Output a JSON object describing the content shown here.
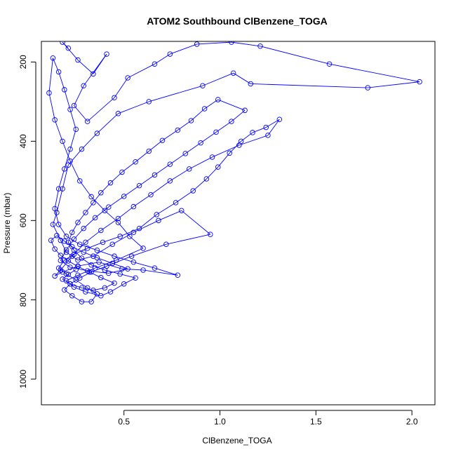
{
  "chart_data": {
    "type": "scatter",
    "title": "ATOM2 Southbound ClBenzene_TOGA",
    "xlabel": "ClBenzene_TOGA",
    "ylabel": "Pressure (mbar)",
    "x_ticks": [
      "0.5",
      "1.0",
      "1.5",
      "2.0"
    ],
    "y_ticks": [
      "200",
      "400",
      "600",
      "800",
      "1000"
    ],
    "xlim": [
      0.07,
      2.12
    ],
    "ylim": [
      1065,
      148
    ],
    "y_reversed": true,
    "style": "points connected by lines",
    "color": "#0000ff",
    "marker": "open circle",
    "points": [
      [
        0.21,
        165
      ],
      [
        0.18,
        150
      ],
      [
        0.26,
        195
      ],
      [
        0.34,
        230
      ],
      [
        0.41,
        180
      ],
      [
        0.29,
        260
      ],
      [
        0.24,
        310
      ],
      [
        0.31,
        350
      ],
      [
        0.45,
        290
      ],
      [
        0.52,
        240
      ],
      [
        0.66,
        205
      ],
      [
        0.74,
        180
      ],
      [
        0.88,
        155
      ],
      [
        1.06,
        150
      ],
      [
        1.21,
        160
      ],
      [
        1.57,
        205
      ],
      [
        2.04,
        250
      ],
      [
        1.77,
        265
      ],
      [
        1.16,
        255
      ],
      [
        1.07,
        228
      ],
      [
        0.91,
        260
      ],
      [
        0.63,
        300
      ],
      [
        0.47,
        330
      ],
      [
        0.36,
        380
      ],
      [
        0.28,
        420
      ],
      [
        0.21,
        460
      ],
      [
        0.18,
        520
      ],
      [
        0.15,
        580
      ],
      [
        0.13,
        610
      ],
      [
        0.17,
        650
      ],
      [
        0.2,
        680
      ],
      [
        0.26,
        700
      ],
      [
        0.34,
        690
      ],
      [
        0.44,
        660
      ],
      [
        0.55,
        630
      ],
      [
        0.68,
        600
      ],
      [
        0.8,
        575
      ],
      [
        0.95,
        635
      ],
      [
        0.72,
        660
      ],
      [
        0.54,
        690
      ],
      [
        0.41,
        715
      ],
      [
        0.33,
        730
      ],
      [
        0.27,
        745
      ],
      [
        0.22,
        760
      ],
      [
        0.19,
        775
      ],
      [
        0.23,
        790
      ],
      [
        0.28,
        805
      ],
      [
        0.33,
        805
      ],
      [
        0.36,
        785
      ],
      [
        0.31,
        770
      ],
      [
        0.25,
        750
      ],
      [
        0.2,
        735
      ],
      [
        0.16,
        720
      ],
      [
        0.19,
        700
      ],
      [
        0.24,
        685
      ],
      [
        0.31,
        670
      ],
      [
        0.39,
        655
      ],
      [
        0.48,
        640
      ],
      [
        0.58,
        620
      ],
      [
        0.67,
        585
      ],
      [
        0.77,
        555
      ],
      [
        0.86,
        525
      ],
      [
        0.93,
        495
      ],
      [
        0.99,
        465
      ],
      [
        1.05,
        430
      ],
      [
        1.11,
        400
      ],
      [
        1.17,
        378
      ],
      [
        1.24,
        365
      ],
      [
        1.31,
        345
      ],
      [
        1.25,
        385
      ],
      [
        1.1,
        410
      ],
      [
        0.96,
        440
      ],
      [
        0.84,
        470
      ],
      [
        0.74,
        500
      ],
      [
        0.64,
        535
      ],
      [
        0.55,
        565
      ],
      [
        0.47,
        595
      ],
      [
        0.38,
        625
      ],
      [
        0.3,
        655
      ],
      [
        0.23,
        690
      ],
      [
        0.17,
        725
      ],
      [
        0.14,
        740
      ],
      [
        0.18,
        730
      ],
      [
        0.26,
        715
      ],
      [
        0.37,
        705
      ],
      [
        0.49,
        722
      ],
      [
        0.6,
        725
      ],
      [
        0.78,
        738
      ],
      [
        0.66,
        720
      ],
      [
        0.55,
        705
      ],
      [
        0.45,
        690
      ],
      [
        0.36,
        675
      ],
      [
        0.27,
        660
      ],
      [
        0.2,
        640
      ],
      [
        0.16,
        610
      ],
      [
        0.14,
        570
      ],
      [
        0.16,
        520
      ],
      [
        0.19,
        470
      ],
      [
        0.22,
        420
      ],
      [
        0.25,
        370
      ],
      [
        0.22,
        320
      ],
      [
        0.19,
        270
      ],
      [
        0.16,
        225
      ],
      [
        0.13,
        190
      ],
      [
        0.11,
        278
      ],
      [
        0.14,
        346
      ],
      [
        0.18,
        400
      ],
      [
        0.22,
        450
      ],
      [
        0.27,
        500
      ],
      [
        0.33,
        540
      ],
      [
        0.4,
        575
      ],
      [
        0.47,
        605
      ],
      [
        0.53,
        640
      ],
      [
        0.6,
        670
      ],
      [
        0.46,
        700
      ],
      [
        0.35,
        720
      ],
      [
        0.26,
        738
      ],
      [
        0.2,
        752
      ],
      [
        0.24,
        768
      ],
      [
        0.3,
        780
      ],
      [
        0.38,
        790
      ],
      [
        0.43,
        780
      ],
      [
        0.5,
        760
      ],
      [
        0.56,
        745
      ],
      [
        0.48,
        735
      ],
      [
        0.4,
        725
      ],
      [
        0.33,
        712
      ],
      [
        0.28,
        695
      ],
      [
        0.24,
        675
      ],
      [
        0.21,
        655
      ],
      [
        0.23,
        630
      ],
      [
        0.26,
        605
      ],
      [
        0.3,
        580
      ],
      [
        0.34,
        555
      ],
      [
        0.38,
        530
      ],
      [
        0.43,
        505
      ],
      [
        0.49,
        478
      ],
      [
        0.56,
        452
      ],
      [
        0.63,
        425
      ],
      [
        0.7,
        398
      ],
      [
        0.78,
        372
      ],
      [
        0.85,
        348
      ],
      [
        0.92,
        318
      ],
      [
        0.99,
        295
      ],
      [
        1.13,
        322
      ],
      [
        1.06,
        350
      ],
      [
        0.98,
        377
      ],
      [
        0.9,
        404
      ],
      [
        0.82,
        431
      ],
      [
        0.74,
        458
      ],
      [
        0.66,
        485
      ],
      [
        0.58,
        512
      ],
      [
        0.5,
        539
      ],
      [
        0.42,
        566
      ],
      [
        0.35,
        593
      ],
      [
        0.29,
        620
      ],
      [
        0.24,
        647
      ],
      [
        0.2,
        674
      ],
      [
        0.17,
        701
      ],
      [
        0.22,
        718
      ],
      [
        0.31,
        727
      ],
      [
        0.42,
        733
      ],
      [
        0.52,
        722
      ],
      [
        0.44,
        708
      ],
      [
        0.36,
        694
      ],
      [
        0.29,
        680
      ],
      [
        0.23,
        666
      ],
      [
        0.19,
        652
      ],
      [
        0.15,
        638
      ],
      [
        0.12,
        650
      ],
      [
        0.14,
        672
      ],
      [
        0.17,
        688
      ],
      [
        0.21,
        702
      ],
      [
        0.26,
        716
      ],
      [
        0.32,
        730
      ],
      [
        0.38,
        744
      ],
      [
        0.45,
        758
      ],
      [
        0.4,
        770
      ],
      [
        0.34,
        776
      ],
      [
        0.28,
        770
      ],
      [
        0.22,
        760
      ],
      [
        0.18,
        748
      ],
      [
        0.21,
        736
      ],
      [
        0.25,
        724
      ]
    ]
  }
}
